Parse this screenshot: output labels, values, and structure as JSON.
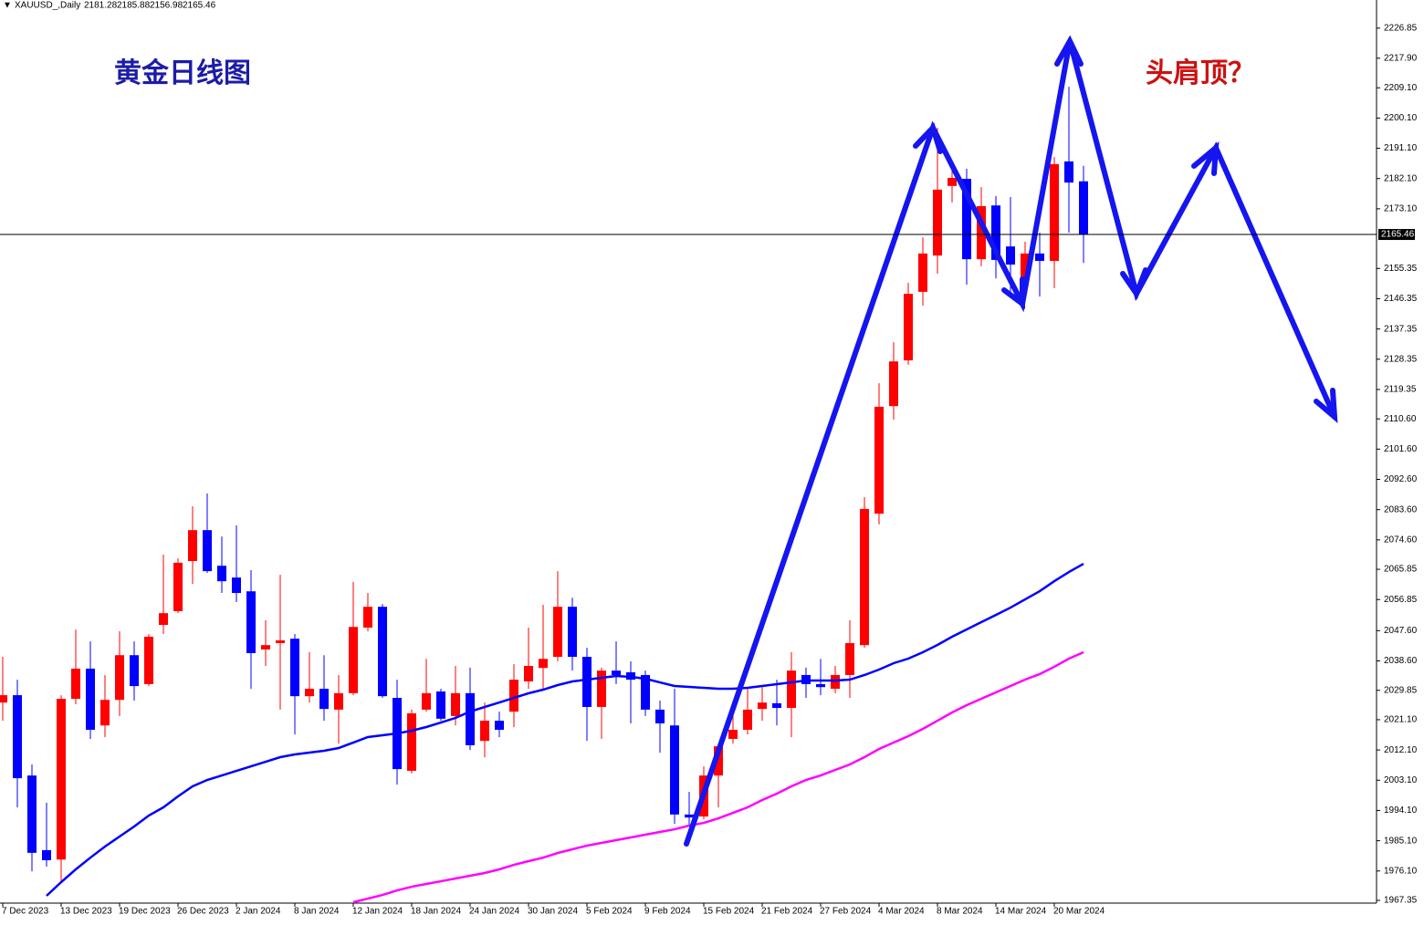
{
  "chart_data": {
    "type": "candlestick",
    "symbol": "XAUUSD_,Daily",
    "title": "黄金日线图",
    "annotation": "头肩顶？",
    "categories": [
      "7 Dec 2023",
      null,
      null,
      null,
      "13 Dec 2023",
      null,
      null,
      null,
      "19 Dec 2023",
      null,
      null,
      null,
      "26 Dec 2023",
      null,
      null,
      null,
      "2 Jan 2024",
      null,
      null,
      null,
      "8 Jan 2024",
      null,
      null,
      null,
      "12 Jan 2024",
      null,
      null,
      null,
      "18 Jan 2024",
      null,
      null,
      null,
      "24 Jan 2024",
      null,
      null,
      null,
      "30 Jan 2024",
      null,
      null,
      null,
      "5 Feb 2024",
      null,
      null,
      null,
      "9 Feb 2024",
      null,
      null,
      null,
      "15 Feb 2024",
      null,
      null,
      null,
      "21 Feb 2024",
      null,
      null,
      null,
      "27 Feb 2024",
      null,
      null,
      null,
      "4 Mar 2024",
      null,
      null,
      null,
      "8 Mar 2024",
      null,
      null,
      null,
      "14 Mar 2024",
      null,
      null,
      null,
      "20 Mar 2024",
      null,
      null
    ],
    "open": [
      2026.2,
      2028.4,
      2004.5,
      1982.3,
      1979.5,
      2027.3,
      2036.3,
      2019.4,
      2027.0,
      2040.3,
      2031.7,
      2049.3,
      2053.4,
      2068.3,
      2077.5,
      2066.9,
      2063.4,
      2059.3,
      2042.0,
      2043.9,
      2045.2,
      2028.1,
      2030.3,
      2024.1,
      2029.0,
      2048.5,
      2054.7,
      2027.6,
      2005.9,
      2024.1,
      2029.5,
      2022.2,
      2029.0,
      2014.8,
      2020.8,
      2023.5,
      2032.5,
      2036.5,
      2039.8,
      2054.7,
      2039.8,
      2024.9,
      2035.7,
      2035.2,
      2034.4,
      2024.1,
      2019.4,
      1992.9,
      1992.3,
      2004.5,
      2015.4,
      2018.1,
      2024.3,
      2026.0,
      2024.6,
      2034.4,
      2031.7,
      2030.3,
      2034.4,
      2043.3,
      2082.4,
      2114.4,
      2128.0,
      2148.4,
      2159.2,
      2179.9,
      2182.0,
      2158.1,
      2174.1,
      2161.9,
      2152.4,
      2159.8,
      2157.6,
      2187.2,
      2181.28
    ],
    "high": [
      2039.8,
      2033.0,
      2007.8,
      1996.4,
      2028.4,
      2047.9,
      2044.4,
      2034.4,
      2047.4,
      2044.4,
      2046.6,
      2070.2,
      2069.1,
      2084.6,
      2088.4,
      2075.6,
      2078.9,
      2065.6,
      2050.7,
      2064.2,
      2046.6,
      2041.2,
      2040.3,
      2034.4,
      2062.1,
      2058.8,
      2055.5,
      2033.0,
      2024.1,
      2039.2,
      2030.3,
      2037.1,
      2036.6,
      2026.2,
      2023.5,
      2037.6,
      2048.5,
      2055.3,
      2065.3,
      2057.4,
      2042.5,
      2036.6,
      2044.4,
      2038.5,
      2035.7,
      2026.8,
      2030.3,
      1999.6,
      2007.2,
      2014.0,
      2022.2,
      2030.3,
      2030.8,
      2033.0,
      2041.2,
      2036.6,
      2039.2,
      2037.1,
      2050.7,
      2087.3,
      2121.2,
      2133.4,
      2151.1,
      2164.6,
      2197.2,
      2186.9,
      2185.0,
      2179.6,
      2176.9,
      2176.6,
      2163.3,
      2166.0,
      2188.5,
      2209.4,
      2185.88
    ],
    "low": [
      2020.8,
      1995.0,
      1976.0,
      1977.4,
      1972.5,
      2025.7,
      2015.4,
      2015.9,
      2022.2,
      2026.8,
      2031.1,
      2046.6,
      2052.8,
      2061.5,
      2064.8,
      2058.8,
      2056.1,
      2030.3,
      2037.1,
      2024.1,
      2016.7,
      2026.2,
      2020.8,
      2014.0,
      2028.4,
      2047.4,
      2027.6,
      2001.8,
      2005.1,
      2023.5,
      2020.8,
      2019.4,
      2012.1,
      2009.9,
      2015.9,
      2018.9,
      2030.3,
      2030.3,
      2038.5,
      2035.7,
      2014.8,
      2015.4,
      2031.7,
      2020.0,
      2022.2,
      2011.3,
      1990.1,
      1989.6,
      1991.5,
      1995.0,
      2014.0,
      2016.7,
      2020.8,
      2019.4,
      2015.9,
      2027.6,
      2028.4,
      2029.0,
      2027.6,
      2042.5,
      2079.2,
      2110.4,
      2126.7,
      2144.3,
      2153.8,
      2175.0,
      2150.5,
      2156.0,
      2152.4,
      2148.4,
      2145.7,
      2147.0,
      2149.5,
      2166.0,
      2156.98
    ],
    "close": [
      2028.4,
      2003.7,
      1981.5,
      1979.3,
      2027.3,
      2036.3,
      2018.1,
      2027.0,
      2040.3,
      2031.1,
      2045.8,
      2052.8,
      2067.8,
      2077.5,
      2065.3,
      2062.3,
      2058.8,
      2040.9,
      2043.3,
      2044.7,
      2028.1,
      2030.3,
      2024.3,
      2029.0,
      2048.7,
      2054.7,
      2028.1,
      2006.4,
      2023.0,
      2029.0,
      2021.4,
      2029.0,
      2013.5,
      2020.8,
      2018.1,
      2033.0,
      2037.1,
      2039.2,
      2054.7,
      2039.8,
      2024.9,
      2035.7,
      2034.4,
      2033.0,
      2024.1,
      2020.0,
      1992.9,
      1992.0,
      2004.5,
      2013.2,
      2018.1,
      2024.1,
      2026.2,
      2024.6,
      2035.7,
      2031.7,
      2030.8,
      2034.4,
      2043.9,
      2083.8,
      2114.2,
      2127.7,
      2147.8,
      2159.8,
      2178.8,
      2182.3,
      2158.1,
      2173.9,
      2157.9,
      2156.5,
      2159.8,
      2157.6,
      2186.4,
      2180.9,
      2165.46
    ],
    "up_color": "#ff0000",
    "down_color": "#0000ff",
    "overlays": [
      {
        "color": "#0000ff",
        "values": [
          null,
          null,
          null,
          1968.71,
          1972.78,
          1976.58,
          1980.06,
          1983.36,
          1986.35,
          1989.33,
          1992.59,
          1995.03,
          1998.29,
          2001.27,
          2003.17,
          2004.53,
          2005.89,
          2007.24,
          2008.6,
          2009.96,
          2010.77,
          2011.32,
          2011.86,
          2012.67,
          2014.3,
          2015.93,
          2016.47,
          2017.01,
          2017.83,
          2018.92,
          2020.27,
          2021.63,
          2023.53,
          2024.89,
          2026.24,
          2027.6,
          2028.96,
          2030.04,
          2031.4,
          2032.49,
          2033.03,
          2033.57,
          2034.11,
          2033.84,
          2033.3,
          2032.21,
          2031.13,
          2030.86,
          2030.58,
          2030.31,
          2030.31,
          2030.58,
          2031.13,
          2031.67,
          2032.21,
          2032.76,
          2032.76,
          2032.76,
          2033.03,
          2034.39,
          2036.02,
          2037.92,
          2039.27,
          2041.17,
          2043.34,
          2045.78,
          2047.95,
          2050.12,
          2052.28,
          2054.45,
          2056.9,
          2059.34,
          2062.33,
          2065.05,
          2067.49
        ]
      },
      {
        "color": "#ff00ff",
        "values": [
          null,
          null,
          null,
          null,
          null,
          null,
          null,
          null,
          null,
          null,
          null,
          null,
          null,
          null,
          null,
          null,
          null,
          null,
          null,
          null,
          null,
          null,
          null,
          null,
          1966.81,
          1967.88,
          1968.97,
          1970.33,
          1971.41,
          1972.23,
          1973.04,
          1973.86,
          1974.68,
          1975.49,
          1976.58,
          1977.93,
          1979.02,
          1980.06,
          1981.46,
          1982.55,
          1983.63,
          1984.45,
          1985.26,
          1986.07,
          1986.89,
          1987.7,
          1988.51,
          1989.6,
          1990.41,
          1991.77,
          1993.4,
          1995.03,
          1997.2,
          1999.1,
          2001.27,
          2003.17,
          2004.53,
          2006.16,
          2007.79,
          2009.95,
          2012.4,
          2014.3,
          2016.2,
          2018.37,
          2020.81,
          2023.26,
          2025.43,
          2027.33,
          2029.23,
          2031.13,
          2033.03,
          2034.67,
          2036.85,
          2039.27,
          2041.17
        ]
      }
    ],
    "ylim": [
      1966.54,
      2235.22
    ],
    "yticks": [
      2226.85,
      {
        "value": 2217.9,
        "label": "2217.90"
      },
      {
        "value": 2209.1,
        "label": "2209.10"
      },
      {
        "value": 2200.1,
        "label": "2200.10"
      },
      {
        "value": 2191.1,
        "label": "2191.10"
      },
      {
        "value": 2182.1,
        "label": "2182.10"
      },
      {
        "value": 2173.1,
        "label": "2173.10"
      },
      2155.35,
      2146.35,
      2137.35,
      2128.35,
      2119.35,
      {
        "value": 2110.6,
        "label": "2110.60"
      },
      {
        "value": 2101.6,
        "label": "2101.60"
      },
      {
        "value": 2092.6,
        "label": "2092.60"
      },
      {
        "value": 2083.6,
        "label": "2083.60"
      },
      {
        "value": 2074.6,
        "label": "2074.60"
      },
      2065.85,
      2056.85,
      {
        "value": 2047.6,
        "label": "2047.60"
      },
      {
        "value": 2038.6,
        "label": "2038.60"
      },
      2029.85,
      {
        "value": 2021.1,
        "label": "2021.10"
      },
      {
        "value": 2012.1,
        "label": "2012.10"
      },
      {
        "value": 2003.1,
        "label": "2003.10"
      },
      {
        "value": 1994.1,
        "label": "1994.10"
      },
      {
        "value": 1985.1,
        "label": "1985.10"
      },
      {
        "value": 1976.1,
        "label": "1976.10"
      },
      1967.35
    ]
  }
}
